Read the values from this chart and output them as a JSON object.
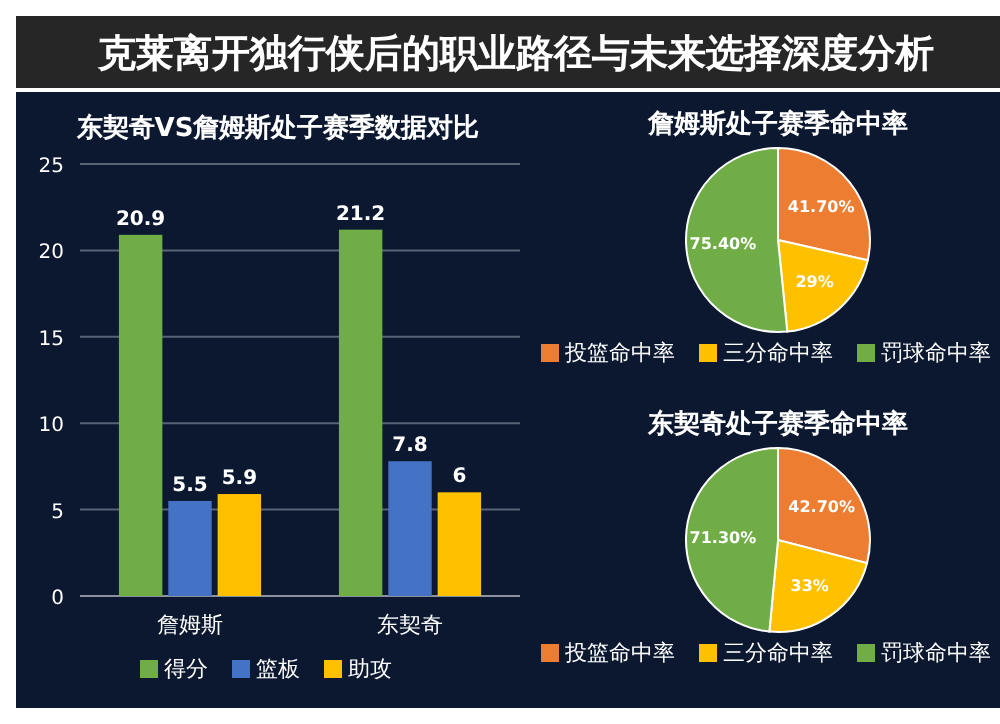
{
  "chart_data": [
    {
      "type": "other",
      "title": "克莱离开独行侠后的职业路径与未来选择深度分析"
    },
    {
      "type": "bar",
      "title": "东契奇VS詹姆斯处子赛季数据对比",
      "categories": [
        "詹姆斯",
        "东契奇"
      ],
      "series": [
        {
          "name": "得分",
          "color": "#70ad47",
          "values": [
            20.9,
            21.2
          ]
        },
        {
          "name": "篮板",
          "color": "#4472c4",
          "values": [
            5.5,
            7.8
          ]
        },
        {
          "name": "助攻",
          "color": "#ffc000",
          "values": [
            5.9,
            6
          ]
        }
      ],
      "ylim": [
        0,
        25
      ],
      "yticks": [
        0,
        5,
        10,
        15,
        20,
        25
      ],
      "grid": "y",
      "legend": "bottom",
      "data_labels": true
    },
    {
      "type": "pie",
      "title": "詹姆斯处子赛季命中率",
      "categories": [
        "投篮命中率",
        "三分命中率",
        "罚球命中率"
      ],
      "values": [
        41.7,
        29,
        75.4
      ],
      "value_labels": [
        "41.70%",
        "29%",
        "75.40%"
      ],
      "colors": [
        "#ed7d31",
        "#ffc000",
        "#70ad47"
      ],
      "legend": "bottom"
    },
    {
      "type": "pie",
      "title": "东契奇处子赛季命中率",
      "categories": [
        "投篮命中率",
        "三分命中率",
        "罚球命中率"
      ],
      "values": [
        42.7,
        33,
        71.3
      ],
      "value_labels": [
        "42.70%",
        "33%",
        "71.30%"
      ],
      "colors": [
        "#ed7d31",
        "#ffc000",
        "#70ad47"
      ],
      "legend": "bottom"
    }
  ]
}
